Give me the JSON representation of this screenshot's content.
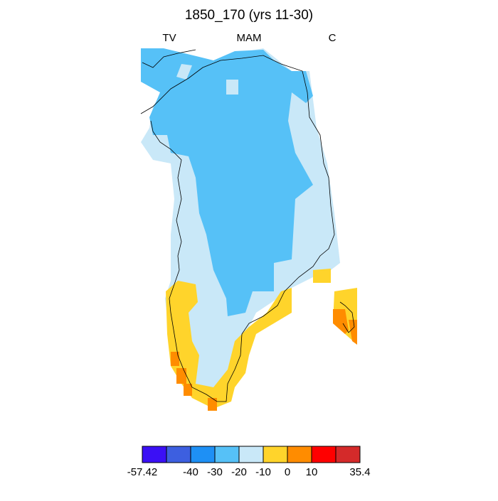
{
  "header": {
    "title": "1850_170 (yrs 11-30)",
    "left": "TV",
    "center": "MAM",
    "right": "C"
  },
  "colorbar": {
    "colors": [
      "#3b10f5",
      "#3d5fe0",
      "#1e90f5",
      "#56c1f7",
      "#c9e8f8",
      "#ffd42b",
      "#ff8c00",
      "#ff0000",
      "#d42a2a"
    ],
    "ticks": [
      -57.42,
      -40,
      -30,
      -20,
      -10,
      0,
      10,
      35.4
    ]
  }
}
